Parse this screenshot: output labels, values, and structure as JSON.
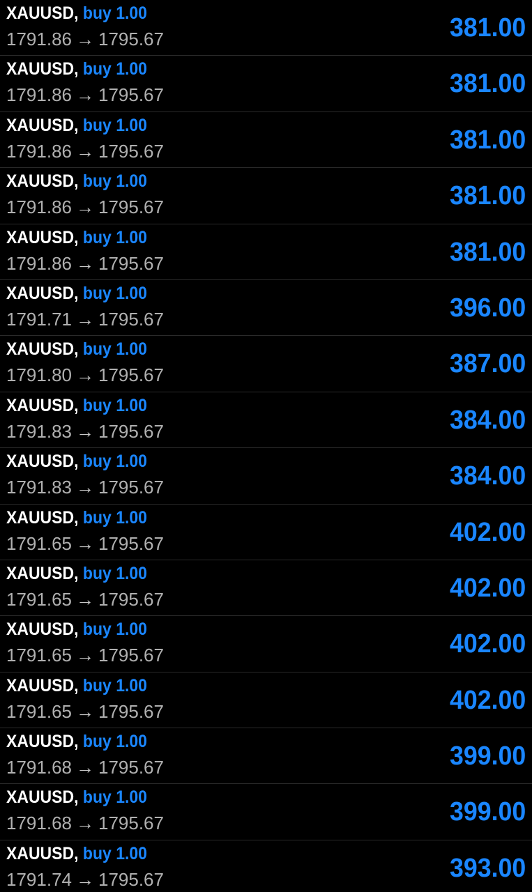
{
  "colors": {
    "background": "#000000",
    "symbol_text": "#ffffff",
    "accent_blue": "#1a86ff",
    "price_text": "#b0b0b0",
    "divider": "#2a2a2a"
  },
  "arrow_glyph": "→",
  "trades": [
    {
      "symbol": "XAUUSD",
      "comma": ",",
      "side": "buy 1.00",
      "open_price": "1791.86",
      "current_price": "1795.67",
      "profit": "381.00"
    },
    {
      "symbol": "XAUUSD",
      "comma": ",",
      "side": "buy 1.00",
      "open_price": "1791.86",
      "current_price": "1795.67",
      "profit": "381.00"
    },
    {
      "symbol": "XAUUSD",
      "comma": ",",
      "side": "buy 1.00",
      "open_price": "1791.86",
      "current_price": "1795.67",
      "profit": "381.00"
    },
    {
      "symbol": "XAUUSD",
      "comma": ",",
      "side": "buy 1.00",
      "open_price": "1791.86",
      "current_price": "1795.67",
      "profit": "381.00"
    },
    {
      "symbol": "XAUUSD",
      "comma": ",",
      "side": "buy 1.00",
      "open_price": "1791.86",
      "current_price": "1795.67",
      "profit": "381.00"
    },
    {
      "symbol": "XAUUSD",
      "comma": ",",
      "side": "buy 1.00",
      "open_price": "1791.71",
      "current_price": "1795.67",
      "profit": "396.00"
    },
    {
      "symbol": "XAUUSD",
      "comma": ",",
      "side": "buy 1.00",
      "open_price": "1791.80",
      "current_price": "1795.67",
      "profit": "387.00"
    },
    {
      "symbol": "XAUUSD",
      "comma": ",",
      "side": "buy 1.00",
      "open_price": "1791.83",
      "current_price": "1795.67",
      "profit": "384.00"
    },
    {
      "symbol": "XAUUSD",
      "comma": ",",
      "side": "buy 1.00",
      "open_price": "1791.83",
      "current_price": "1795.67",
      "profit": "384.00"
    },
    {
      "symbol": "XAUUSD",
      "comma": ",",
      "side": "buy 1.00",
      "open_price": "1791.65",
      "current_price": "1795.67",
      "profit": "402.00"
    },
    {
      "symbol": "XAUUSD",
      "comma": ",",
      "side": "buy 1.00",
      "open_price": "1791.65",
      "current_price": "1795.67",
      "profit": "402.00"
    },
    {
      "symbol": "XAUUSD",
      "comma": ",",
      "side": "buy 1.00",
      "open_price": "1791.65",
      "current_price": "1795.67",
      "profit": "402.00"
    },
    {
      "symbol": "XAUUSD",
      "comma": ",",
      "side": "buy 1.00",
      "open_price": "1791.65",
      "current_price": "1795.67",
      "profit": "402.00"
    },
    {
      "symbol": "XAUUSD",
      "comma": ",",
      "side": "buy 1.00",
      "open_price": "1791.68",
      "current_price": "1795.67",
      "profit": "399.00"
    },
    {
      "symbol": "XAUUSD",
      "comma": ",",
      "side": "buy 1.00",
      "open_price": "1791.68",
      "current_price": "1795.67",
      "profit": "399.00"
    },
    {
      "symbol": "XAUUSD",
      "comma": ",",
      "side": "buy 1.00",
      "open_price": "1791.74",
      "current_price": "1795.67",
      "profit": "393.00"
    }
  ]
}
